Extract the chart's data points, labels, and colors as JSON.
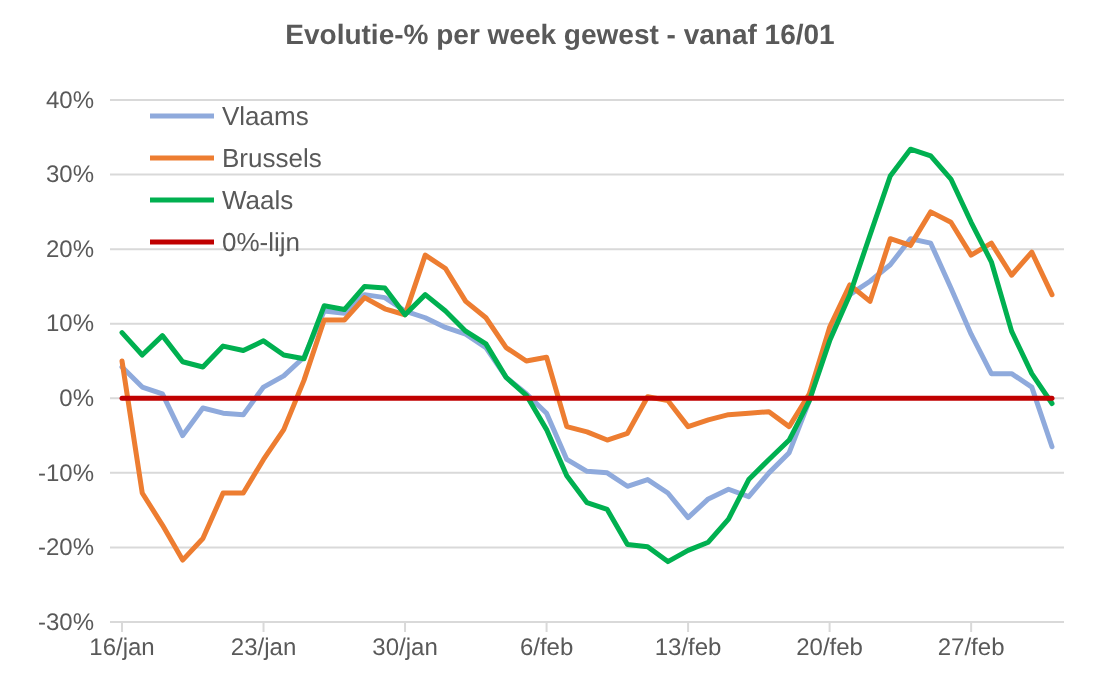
{
  "chart_data": {
    "type": "line",
    "title": "Evolutie-% per week gewest - vanaf 16/01",
    "categories": [
      "16/jan",
      null,
      null,
      null,
      null,
      null,
      null,
      "23/jan",
      null,
      null,
      null,
      null,
      null,
      null,
      "30/jan",
      null,
      null,
      null,
      null,
      null,
      null,
      "6/feb",
      null,
      null,
      null,
      null,
      null,
      null,
      "13/feb",
      null,
      null,
      null,
      null,
      null,
      null,
      "20/feb",
      null,
      null,
      null,
      null,
      null,
      null,
      "27/feb",
      null,
      null,
      null,
      null
    ],
    "series": [
      {
        "name": "Vlaams",
        "color": "#8faadc",
        "values": [
          4.2,
          1.5,
          0.6,
          -5,
          -1.3,
          -2,
          -2.2,
          1.5,
          3,
          5.5,
          11.7,
          11.4,
          13.9,
          13.5,
          11.7,
          10.8,
          9.5,
          8.6,
          6.8,
          2.8,
          0.6,
          -2,
          -8.2,
          -9.8,
          -10,
          -11.8,
          -10.9,
          -12.7,
          -16,
          -13.5,
          -12.2,
          -13.2,
          -10,
          -7.3,
          -0.3,
          8.6,
          13.9,
          15.7,
          17.9,
          21.4,
          20.8,
          14.8,
          8.6,
          3.3,
          3.3,
          1.5,
          -6.5
        ]
      },
      {
        "name": "Brussels",
        "color": "#ed7d31",
        "values": [
          5,
          -12.7,
          -17,
          -21.7,
          -18.8,
          -12.7,
          -12.7,
          -8.2,
          -4.2,
          2.4,
          10.5,
          10.5,
          13.5,
          12,
          11.2,
          19.2,
          17.4,
          13,
          10.8,
          6.8,
          5,
          5.5,
          -3.8,
          -4.5,
          -5.6,
          -4.7,
          0.2,
          -0.3,
          -3.8,
          -2.9,
          -2.2,
          -2,
          -1.8,
          -3.8,
          0.6,
          9.5,
          15.2,
          13,
          21.4,
          20.5,
          25,
          23.6,
          19.2,
          20.8,
          16.5,
          19.6,
          13.9
        ]
      },
      {
        "name": "Waals",
        "color": "#00b050",
        "values": [
          8.8,
          5.8,
          8.4,
          4.9,
          4.2,
          7,
          6.4,
          7.7,
          5.8,
          5.3,
          12.4,
          11.9,
          15,
          14.8,
          11.2,
          13.9,
          11.7,
          9,
          7.3,
          2.8,
          0.4,
          -4.2,
          -10.4,
          -14,
          -14.9,
          -19.6,
          -19.9,
          -21.9,
          -20.4,
          -19.3,
          -16.2,
          -10.9,
          -8.2,
          -5.6,
          -0.3,
          7.7,
          13.9,
          21.9,
          29.8,
          33.4,
          32.5,
          29.4,
          23.6,
          18.3,
          9,
          3.3,
          -0.7
        ]
      },
      {
        "name": "0%-lijn",
        "color": "#c00000",
        "values": [
          0,
          0,
          0,
          0,
          0,
          0,
          0,
          0,
          0,
          0,
          0,
          0,
          0,
          0,
          0,
          0,
          0,
          0,
          0,
          0,
          0,
          0,
          0,
          0,
          0,
          0,
          0,
          0,
          0,
          0,
          0,
          0,
          0,
          0,
          0,
          0,
          0,
          0,
          0,
          0,
          0,
          0,
          0,
          0,
          0,
          0,
          0
        ]
      }
    ],
    "ylim": [
      -30,
      40
    ],
    "yticks": [
      {
        "value": -30,
        "label": "-30%"
      },
      {
        "value": -20,
        "label": "-20%"
      },
      {
        "value": -10,
        "label": "-10%"
      },
      {
        "value": 0,
        "label": "0%"
      },
      {
        "value": 10,
        "label": "10%"
      },
      {
        "value": 20,
        "label": "20%"
      },
      {
        "value": 30,
        "label": "30%"
      },
      {
        "value": 40,
        "label": "40%"
      }
    ],
    "grid": "y",
    "legend": "top left",
    "marker": "none",
    "line_style": "solid"
  }
}
